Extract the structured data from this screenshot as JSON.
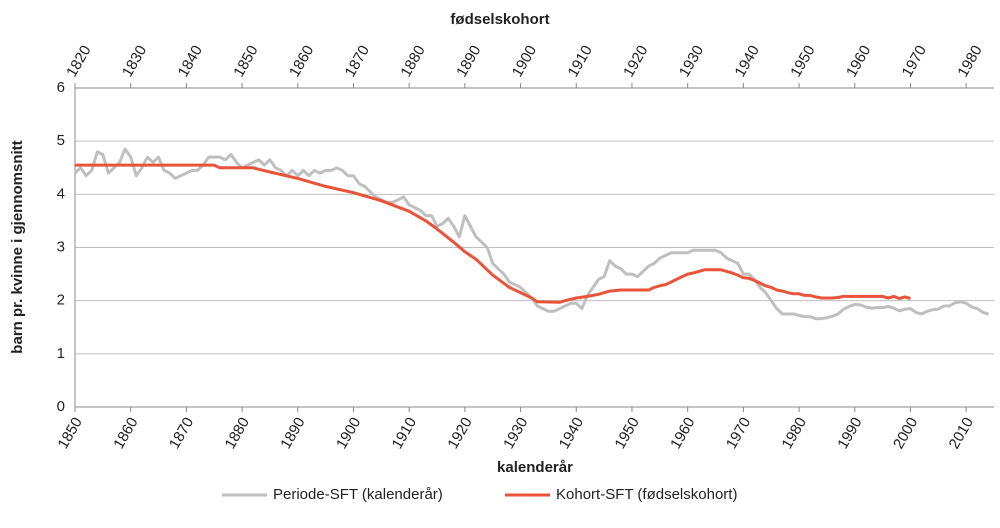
{
  "chart_data": {
    "type": "line",
    "title": "fødselskohort",
    "xlabel": "kalenderår",
    "ylabel": "barn pr. kvinne i gjennomsnitt",
    "xlim": [
      1850,
      2015
    ],
    "xticks": [
      1850,
      1860,
      1870,
      1880,
      1890,
      1900,
      1910,
      1920,
      1930,
      1940,
      1950,
      1960,
      1970,
      1980,
      1990,
      2000,
      2010
    ],
    "x2lim": [
      1820,
      1985
    ],
    "x2ticks": [
      1820,
      1830,
      1840,
      1850,
      1860,
      1870,
      1880,
      1890,
      1900,
      1910,
      1920,
      1930,
      1940,
      1950,
      1960,
      1970,
      1980
    ],
    "ylim": [
      0,
      6
    ],
    "yticks": [
      0,
      1,
      2,
      3,
      4,
      5,
      6
    ],
    "grid": true,
    "series": [
      {
        "name": "Periode-SFT (kalenderår)",
        "color": "#bfbfbf",
        "xaxis": "x",
        "x": [
          1850,
          1851,
          1852,
          1853,
          1854,
          1855,
          1856,
          1857,
          1858,
          1859,
          1860,
          1861,
          1862,
          1863,
          1864,
          1865,
          1866,
          1867,
          1868,
          1869,
          1870,
          1871,
          1872,
          1873,
          1874,
          1875,
          1876,
          1877,
          1878,
          1879,
          1880,
          1881,
          1882,
          1883,
          1884,
          1885,
          1886,
          1887,
          1888,
          1889,
          1890,
          1891,
          1892,
          1893,
          1894,
          1895,
          1896,
          1897,
          1898,
          1899,
          1900,
          1901,
          1902,
          1903,
          1904,
          1905,
          1906,
          1907,
          1908,
          1909,
          1910,
          1911,
          1912,
          1913,
          1914,
          1915,
          1916,
          1917,
          1918,
          1919,
          1920,
          1921,
          1922,
          1923,
          1924,
          1925,
          1926,
          1927,
          1928,
          1929,
          1930,
          1931,
          1932,
          1933,
          1934,
          1935,
          1936,
          1937,
          1938,
          1939,
          1940,
          1941,
          1942,
          1943,
          1944,
          1945,
          1946,
          1947,
          1948,
          1949,
          1950,
          1951,
          1952,
          1953,
          1954,
          1955,
          1956,
          1957,
          1958,
          1959,
          1960,
          1961,
          1962,
          1963,
          1964,
          1965,
          1966,
          1967,
          1968,
          1969,
          1970,
          1971,
          1972,
          1973,
          1974,
          1975,
          1976,
          1977,
          1978,
          1979,
          1980,
          1981,
          1982,
          1983,
          1984,
          1985,
          1986,
          1987,
          1988,
          1989,
          1990,
          1991,
          1992,
          1993,
          1994,
          1995,
          1996,
          1997,
          1998,
          1999,
          2000,
          2001,
          2002,
          2003,
          2004,
          2005,
          2006,
          2007,
          2008,
          2009,
          2010,
          2011,
          2012,
          2013,
          2014
        ],
        "values": [
          4.4,
          4.5,
          4.35,
          4.45,
          4.8,
          4.75,
          4.4,
          4.5,
          4.6,
          4.85,
          4.7,
          4.35,
          4.5,
          4.7,
          4.6,
          4.7,
          4.45,
          4.4,
          4.3,
          4.35,
          4.4,
          4.45,
          4.45,
          4.55,
          4.7,
          4.7,
          4.7,
          4.65,
          4.75,
          4.6,
          4.5,
          4.55,
          4.6,
          4.65,
          4.55,
          4.65,
          4.5,
          4.45,
          4.35,
          4.45,
          4.35,
          4.45,
          4.35,
          4.45,
          4.4,
          4.45,
          4.45,
          4.5,
          4.45,
          4.35,
          4.35,
          4.2,
          4.15,
          4.05,
          3.95,
          3.9,
          3.85,
          3.85,
          3.9,
          3.95,
          3.8,
          3.75,
          3.7,
          3.6,
          3.6,
          3.4,
          3.45,
          3.55,
          3.4,
          3.2,
          3.6,
          3.4,
          3.2,
          3.1,
          3.0,
          2.7,
          2.6,
          2.5,
          2.35,
          2.3,
          2.25,
          2.15,
          2.05,
          1.9,
          1.85,
          1.8,
          1.8,
          1.85,
          1.9,
          1.95,
          1.95,
          1.85,
          2.1,
          2.25,
          2.4,
          2.45,
          2.75,
          2.65,
          2.6,
          2.5,
          2.5,
          2.45,
          2.55,
          2.65,
          2.7,
          2.8,
          2.85,
          2.9,
          2.9,
          2.9,
          2.9,
          2.95,
          2.95,
          2.95,
          2.95,
          2.95,
          2.9,
          2.8,
          2.75,
          2.7,
          2.5,
          2.5,
          2.4,
          2.25,
          2.15,
          2.0,
          1.85,
          1.75,
          1.75,
          1.75,
          1.72,
          1.7,
          1.7,
          1.66,
          1.66,
          1.68,
          1.71,
          1.75,
          1.84,
          1.89,
          1.93,
          1.92,
          1.88,
          1.86,
          1.87,
          1.87,
          1.89,
          1.86,
          1.81,
          1.84,
          1.85,
          1.78,
          1.75,
          1.8,
          1.83,
          1.84,
          1.9,
          1.9,
          1.96,
          1.98,
          1.95,
          1.88,
          1.85,
          1.78,
          1.75
        ]
      },
      {
        "name": "Kohort-SFT (fødselskohort)",
        "color": "#e8533a",
        "xaxis": "x2",
        "x": [
          1820,
          1845,
          1846,
          1852,
          1853,
          1855,
          1860,
          1865,
          1870,
          1875,
          1880,
          1883,
          1885,
          1888,
          1890,
          1892,
          1895,
          1898,
          1900,
          1902,
          1903,
          1907,
          1908,
          1910,
          1912,
          1914,
          1916,
          1918,
          1923,
          1924,
          1925,
          1926,
          1927,
          1928,
          1929,
          1930,
          1931,
          1932,
          1933,
          1936,
          1937,
          1938,
          1939,
          1940,
          1941,
          1942,
          1943,
          1944,
          1945,
          1946,
          1947,
          1948,
          1949,
          1950,
          1951,
          1952,
          1953,
          1954,
          1956,
          1957,
          1958,
          1965,
          1966,
          1967,
          1968,
          1969,
          1970
        ],
        "values": [
          4.55,
          4.55,
          4.5,
          4.5,
          4.47,
          4.42,
          4.3,
          4.15,
          4.03,
          3.88,
          3.68,
          3.5,
          3.35,
          3.1,
          2.92,
          2.78,
          2.48,
          2.25,
          2.15,
          2.05,
          1.98,
          1.97,
          2.0,
          2.05,
          2.08,
          2.12,
          2.18,
          2.2,
          2.2,
          2.25,
          2.28,
          2.3,
          2.35,
          2.4,
          2.45,
          2.5,
          2.52,
          2.55,
          2.58,
          2.58,
          2.55,
          2.52,
          2.48,
          2.43,
          2.42,
          2.38,
          2.33,
          2.28,
          2.25,
          2.2,
          2.18,
          2.15,
          2.13,
          2.13,
          2.1,
          2.1,
          2.07,
          2.05,
          2.05,
          2.06,
          2.08,
          2.08,
          2.05,
          2.08,
          2.04,
          2.07,
          2.04
        ]
      }
    ]
  }
}
